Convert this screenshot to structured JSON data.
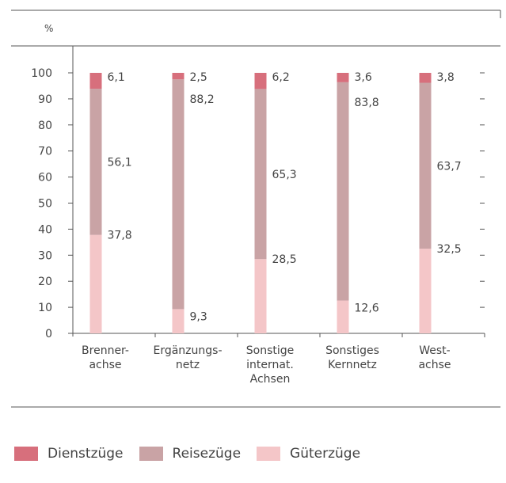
{
  "chart_data": {
    "type": "bar",
    "stacked": true,
    "ylabel": "%",
    "ylim": [
      0,
      100
    ],
    "yticks": [
      0,
      10,
      20,
      30,
      40,
      50,
      60,
      70,
      80,
      90,
      100
    ],
    "categories": [
      [
        "Brenner-",
        "achse"
      ],
      [
        "Ergänzungs-",
        "netz"
      ],
      [
        "Sonstige",
        "internat.",
        "Achsen"
      ],
      [
        "Sonstiges",
        "Kernnetz"
      ],
      [
        "West-",
        "achse"
      ]
    ],
    "series": [
      {
        "name": "Güterzüge",
        "color": "#f4c6c8",
        "values": [
          37.8,
          9.3,
          28.5,
          12.6,
          32.5
        ],
        "labels": [
          "37,8",
          "9,3",
          "28,5",
          "12,6",
          "32,5"
        ]
      },
      {
        "name": "Reisezüge",
        "color": "#c9a3a5",
        "values": [
          56.1,
          88.2,
          65.3,
          83.8,
          63.7
        ],
        "labels": [
          "56,1",
          "88,2",
          "65,3",
          "83,8",
          "63,7"
        ]
      },
      {
        "name": "Dienstzüge",
        "color": "#d76f7c",
        "values": [
          6.1,
          2.5,
          6.2,
          3.6,
          3.8
        ],
        "labels": [
          "6,1",
          "2,5",
          "6,2",
          "3,6",
          "3,8"
        ]
      }
    ],
    "legend": {
      "position": "bottom-left",
      "order": [
        "Dienstzüge",
        "Reisezüge",
        "Güterzüge"
      ]
    }
  }
}
